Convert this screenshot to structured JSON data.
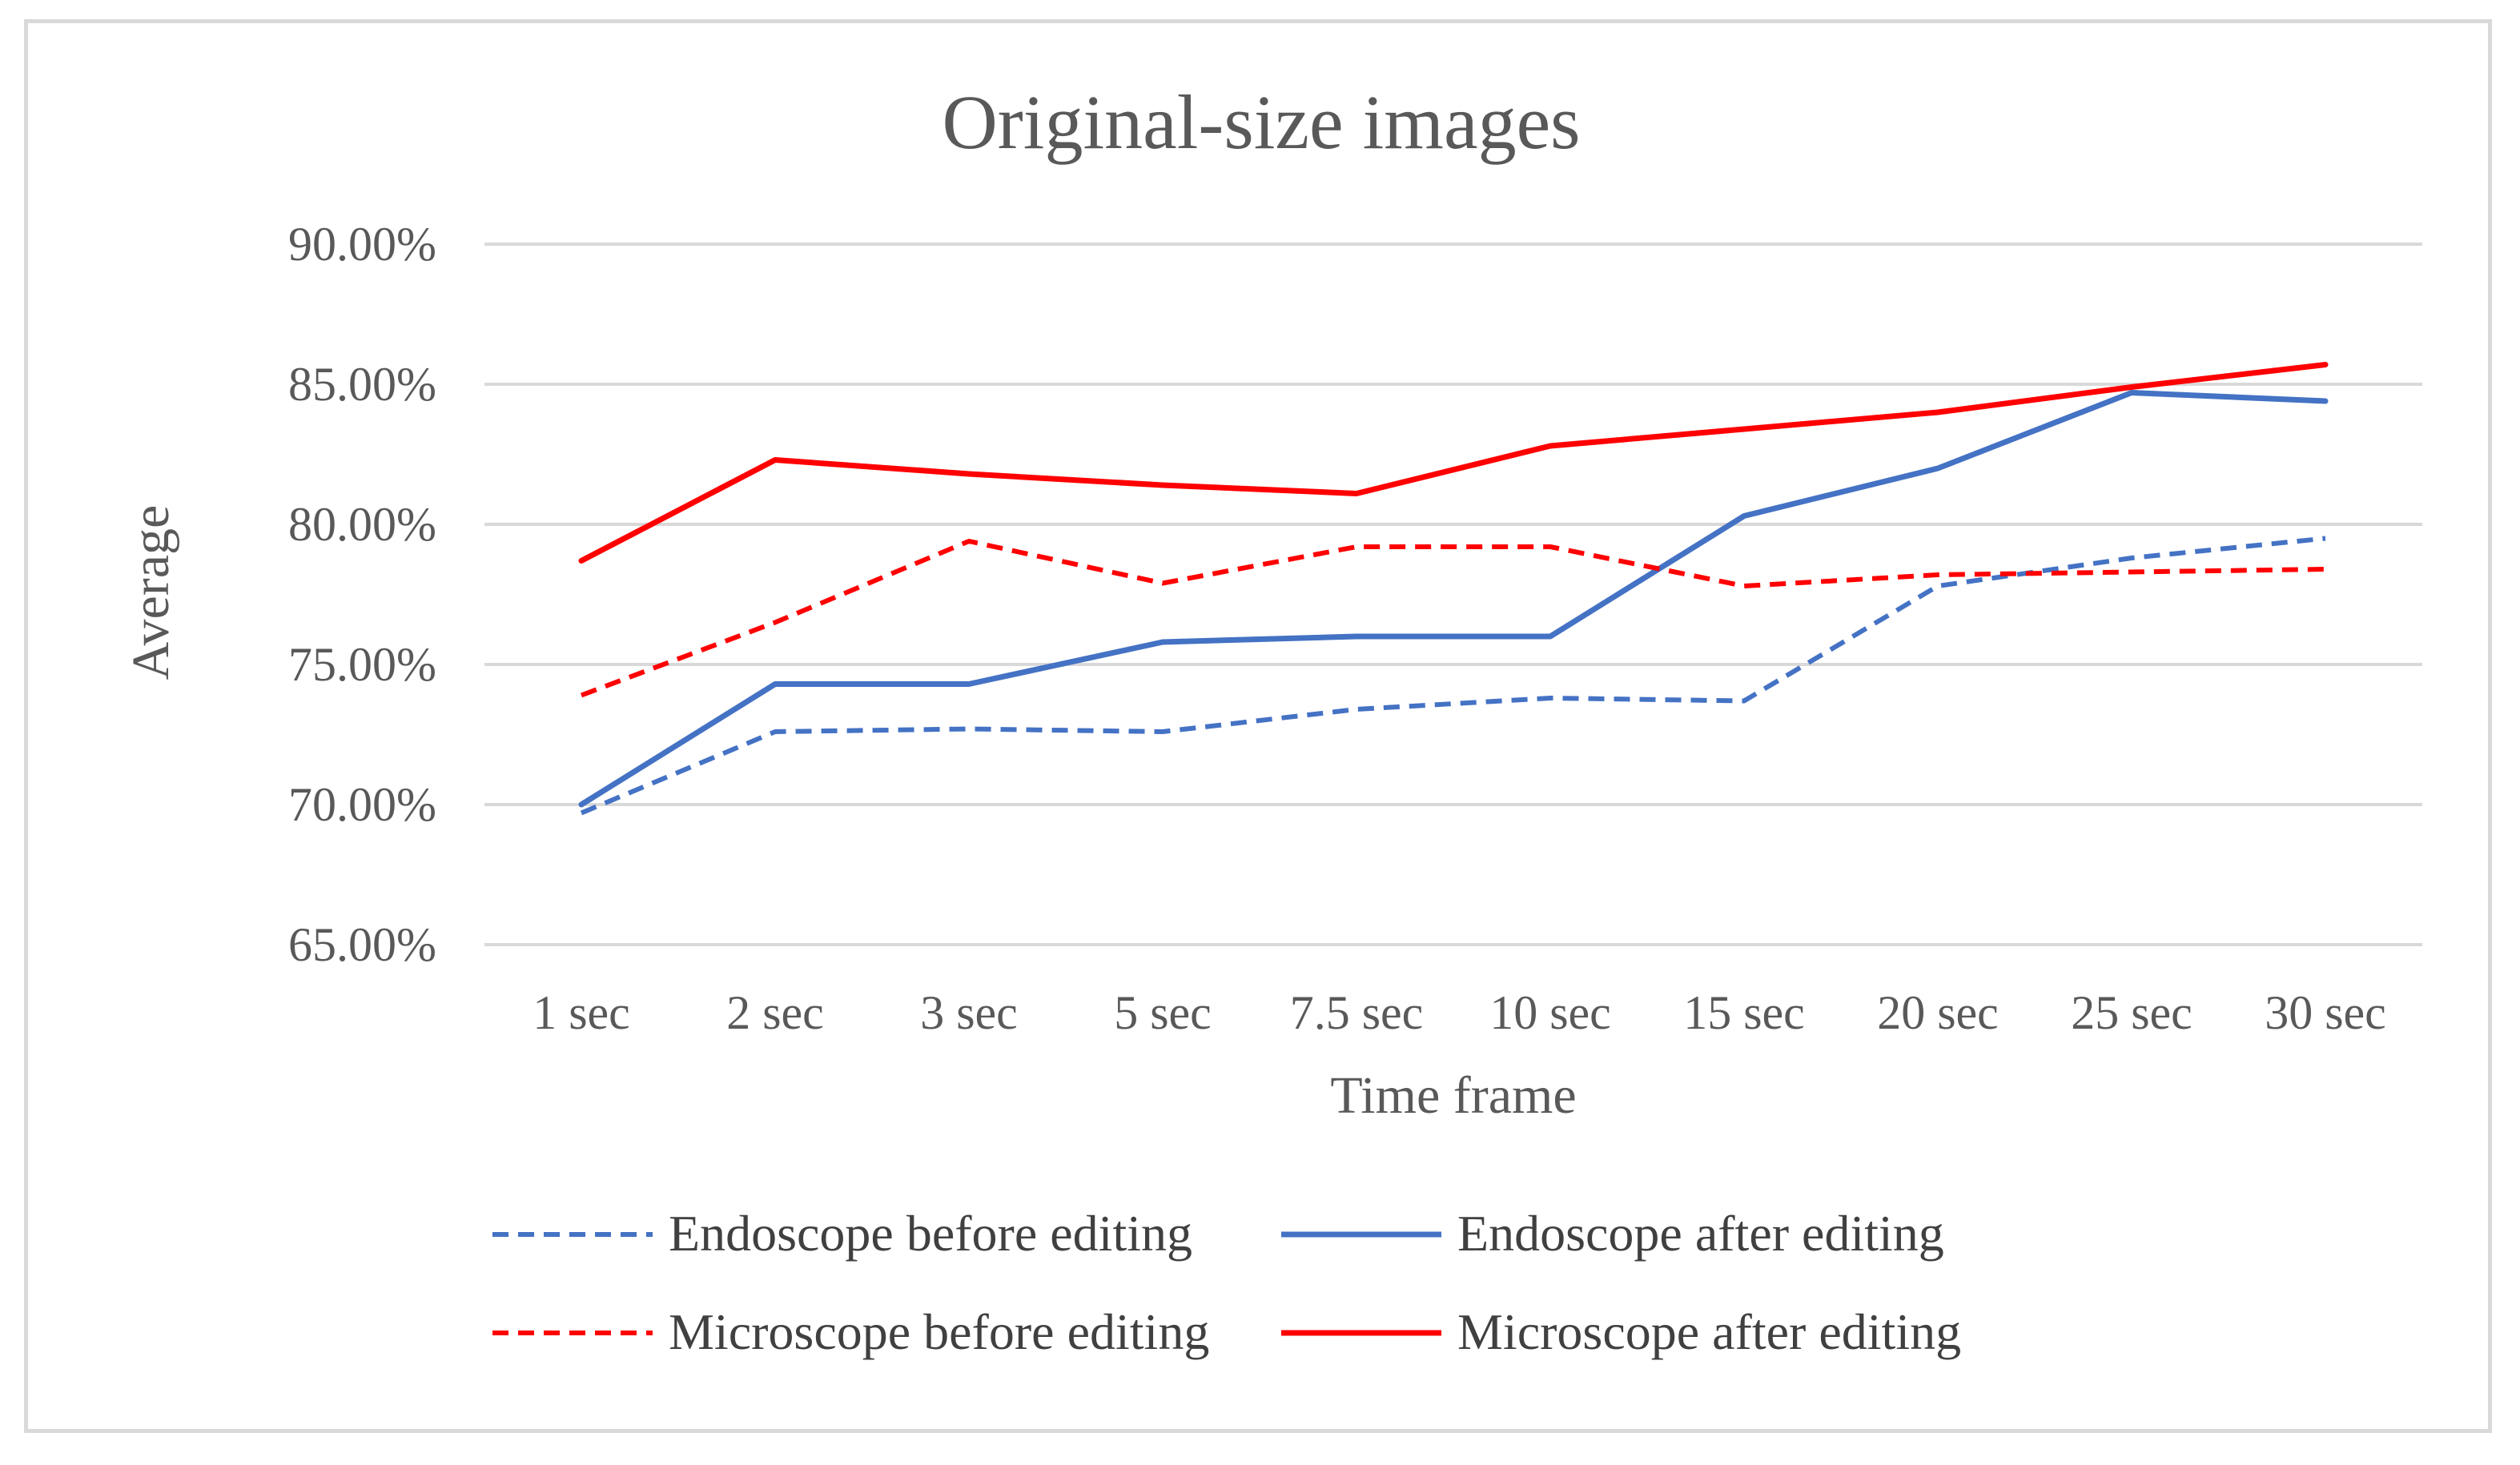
{
  "chart_data": {
    "type": "line",
    "title": "Original-size images",
    "xlabel": "Time frame",
    "ylabel": "Average",
    "categories": [
      "1 sec",
      "2 sec",
      "3 sec",
      "5 sec",
      "7.5 sec",
      "10 sec",
      "15 sec",
      "20 sec",
      "25 sec",
      "30 sec"
    ],
    "ylim": [
      0.65,
      0.9
    ],
    "yticks": [
      0.65,
      0.7,
      0.75,
      0.8,
      0.85,
      0.9
    ],
    "ytick_labels": [
      "65.00%",
      "70.00%",
      "75.00%",
      "80.00%",
      "85.00%",
      "90.00%"
    ],
    "grid": true,
    "legend_position": "bottom",
    "series": [
      {
        "name": "Endoscope before editing",
        "color": "#4472c4",
        "dashed": true,
        "values": [
          0.697,
          0.726,
          0.727,
          0.726,
          0.734,
          0.738,
          0.737,
          0.778,
          0.788,
          0.795
        ]
      },
      {
        "name": "Endoscope after editing",
        "color": "#4472c4",
        "dashed": false,
        "values": [
          0.7,
          0.743,
          0.743,
          0.758,
          0.76,
          0.76,
          0.803,
          0.82,
          0.847,
          0.844
        ]
      },
      {
        "name": "Microscope before editing",
        "color": "#ff0000",
        "dashed": true,
        "values": [
          0.739,
          0.765,
          0.794,
          0.779,
          0.792,
          0.792,
          0.778,
          0.782,
          0.783,
          0.784
        ]
      },
      {
        "name": "Microscope after editing",
        "color": "#ff0000",
        "dashed": false,
        "values": [
          0.787,
          0.823,
          0.818,
          0.814,
          0.811,
          0.828,
          0.834,
          0.84,
          0.849,
          0.857
        ]
      }
    ]
  }
}
